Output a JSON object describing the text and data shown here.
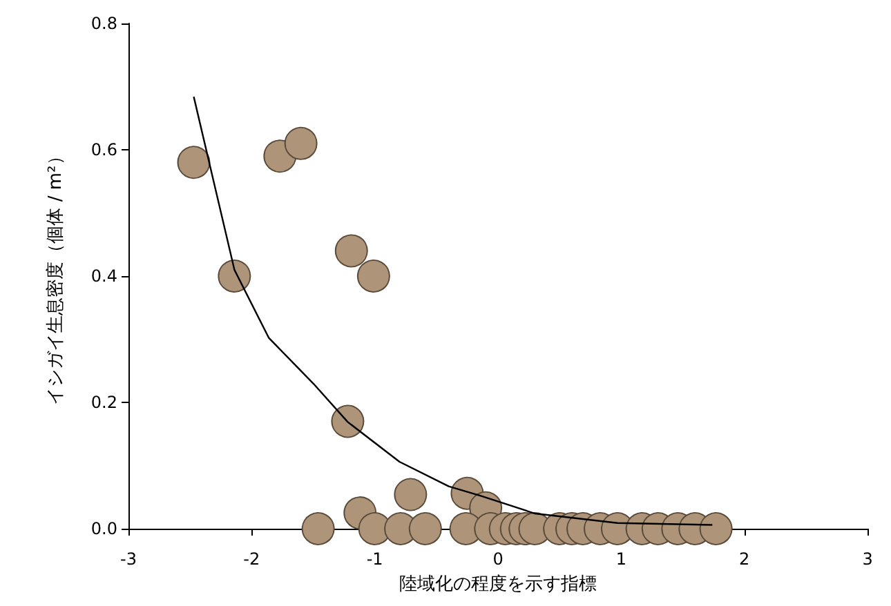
{
  "chart_data": {
    "type": "scatter",
    "xlabel": "陸域化の程度を示す指標",
    "ylabel": "イシガイ生息密度（個体 / m²）",
    "xlim": [
      -3,
      3
    ],
    "xticks": [
      -3,
      -2,
      -1,
      0,
      1,
      2,
      3
    ],
    "ylim": [
      0,
      0.8
    ],
    "yticks": [
      {
        "value": 0,
        "label": "0.0"
      },
      {
        "value": 0.2,
        "label": "0.2"
      },
      {
        "value": 0.4,
        "label": "0.4"
      },
      {
        "value": 0.6,
        "label": "0.6"
      },
      {
        "value": 0.8,
        "label": "0.8"
      }
    ],
    "grid": false,
    "marker": "circle",
    "series": [
      {
        "type": "scatter",
        "color": "#ae9579",
        "x": [
          -2.47,
          -2.14,
          -1.77,
          -1.6,
          -1.19,
          -1.01,
          -1.22,
          -1.12,
          -0.71,
          -0.25,
          -0.1,
          -1.46,
          -1.0,
          -0.79,
          -0.59,
          -0.26,
          -0.06,
          0.06,
          0.15,
          0.22,
          0.3,
          0.5,
          0.6,
          0.69,
          0.83,
          0.97,
          1.17,
          1.3,
          1.46,
          1.6,
          1.77
        ],
        "values": [
          0.58,
          0.4,
          0.59,
          0.61,
          0.44,
          0.4,
          0.17,
          0.025,
          0.054,
          0.056,
          0.033,
          0,
          0,
          0,
          0,
          0,
          0,
          0,
          0,
          0,
          0,
          0,
          0,
          0,
          0,
          0,
          0,
          0,
          0,
          0,
          0
        ]
      },
      {
        "type": "line",
        "color": "#000000",
        "marker": "none",
        "line_style": "solid",
        "x": [
          -2.47,
          -2.14,
          -1.86,
          -1.5,
          -1.22,
          -0.8,
          -0.4,
          -0.14,
          0.3,
          0.97,
          1.74
        ],
        "values": [
          0.684,
          0.41,
          0.302,
          0.23,
          0.169,
          0.106,
          0.067,
          0.052,
          0.024,
          0.009,
          0.006
        ]
      }
    ]
  }
}
